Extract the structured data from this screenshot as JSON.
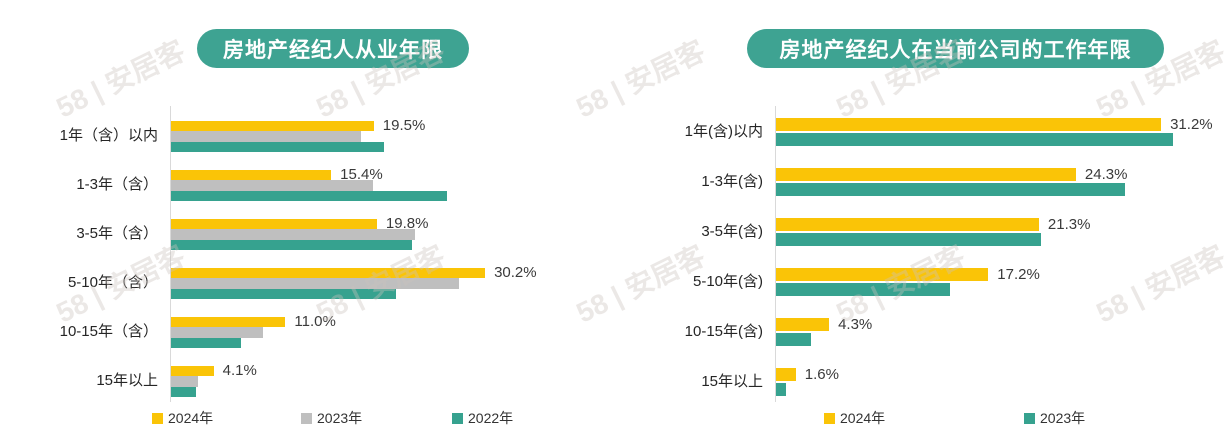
{
  "watermark": {
    "text": "58 | 安居客"
  },
  "colors": {
    "title_pill": "#3EA392",
    "bar_yellow": "#FAC407",
    "bar_gray": "#BFBFBF",
    "bar_teal": "#36A28F",
    "axis": "#D9D9D9",
    "value_label_text": "#3A3A3A"
  },
  "chart_data": [
    {
      "type": "bar",
      "orientation": "horizontal",
      "title": "房地产经纪人从业年限",
      "categories": [
        "1年（含）以内",
        "1-3年（含）",
        "3-5年（含）",
        "5-10年（含）",
        "10-15年（含）",
        "15年以上"
      ],
      "series": [
        {
          "name": "2024年",
          "color": "#FAC407",
          "values": [
            19.5,
            15.4,
            19.8,
            30.2,
            11.0,
            4.1
          ]
        },
        {
          "name": "2023年",
          "color": "#BFBFBF",
          "values": [
            18.3,
            19.4,
            23.5,
            27.7,
            8.8,
            2.6
          ]
        },
        {
          "name": "2022年",
          "color": "#36A28F",
          "values": [
            20.5,
            26.5,
            23.2,
            21.6,
            6.7,
            2.4
          ]
        }
      ],
      "value_labels": [
        "19.5%",
        "15.4%",
        "19.8%",
        "30.2%",
        "11.0%",
        "4.1%"
      ],
      "value_labels_on_series": "2024年",
      "xlim": [
        0,
        35
      ],
      "grid": false,
      "legend_position": "bottom"
    },
    {
      "type": "bar",
      "orientation": "horizontal",
      "title": "房地产经纪人在当前公司的工作年限",
      "categories": [
        "1年(含)以内",
        "1-3年(含)",
        "3-5年(含)",
        "5-10年(含)",
        "10-15年(含)",
        "15年以上"
      ],
      "series": [
        {
          "name": "2024年",
          "color": "#FAC407",
          "values": [
            31.2,
            24.3,
            21.3,
            17.2,
            4.3,
            1.6
          ]
        },
        {
          "name": "2023年",
          "color": "#36A28F",
          "values": [
            32.2,
            28.3,
            21.5,
            14.1,
            2.8,
            0.8
          ]
        }
      ],
      "value_labels": [
        "31.2%",
        "24.3%",
        "21.3%",
        "17.2%",
        "4.3%",
        "1.6%"
      ],
      "value_labels_on_series": "2024年",
      "xlim": [
        0,
        35
      ],
      "grid": false,
      "legend_position": "bottom"
    }
  ]
}
